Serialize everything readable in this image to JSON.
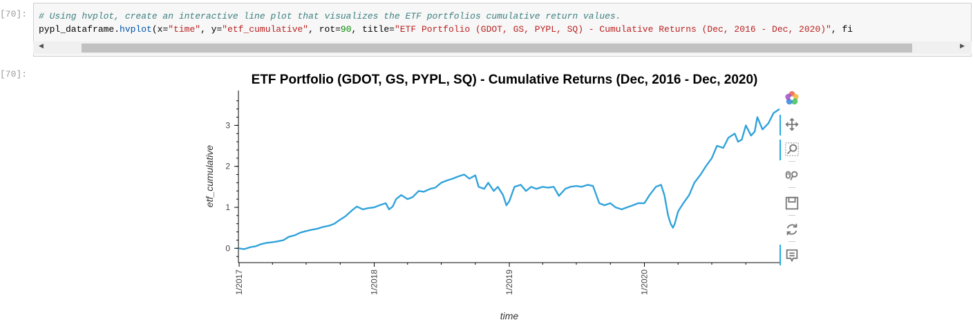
{
  "notebook": {
    "input_prompt": "[70]:",
    "output_prompt": "[70]:",
    "code_comment": "# Using hvplot, create an interactive line plot that visualizes the ETF portfolios cumulative return values.",
    "code_line": {
      "obj": "pypl_dataframe.",
      "method": "hvplot",
      "p1": "(x=",
      "x": "\"time\"",
      "p2": ", y=",
      "y": "\"etf_cumulative\"",
      "p3": ", rot=",
      "rot": "90",
      "p4": ", title=",
      "title": "\"ETF Portfolio (GDOT, GS, PYPL, SQ) - Cumulative Returns (Dec, 2016 - Dec, 2020)\"",
      "p5": ", fi"
    },
    "scroll_left": "◀",
    "scroll_right": "▶"
  },
  "toolbar": {
    "icons": [
      "bokeh-logo-icon",
      "pan-icon",
      "box-zoom-icon",
      "wheel-zoom-icon",
      "save-icon",
      "reset-icon",
      "hover-icon"
    ]
  },
  "chart_data": {
    "type": "line",
    "title": "ETF Portfolio (GDOT, GS, PYPL, SQ) - Cumulative Returns (Dec, 2016 - Dec, 2020)",
    "xlabel": "time",
    "ylabel": "etf_cumulative",
    "x_ticks": [
      "1/2017",
      "1/2018",
      "1/2019",
      "1/2020"
    ],
    "y_ticks": [
      0,
      1,
      2,
      3
    ],
    "xlim": [
      "2016-12-30",
      "2020-12-31"
    ],
    "ylim": [
      -0.35,
      3.85
    ],
    "grid": false,
    "color": "#30a2da",
    "series": [
      {
        "x": [
          "2016-12-30",
          "2017-01-15",
          "2017-02-01",
          "2017-02-15",
          "2017-03-01",
          "2017-03-15",
          "2017-04-01",
          "2017-04-15",
          "2017-05-01",
          "2017-05-15",
          "2017-06-01",
          "2017-06-15",
          "2017-07-01",
          "2017-07-15",
          "2017-08-01",
          "2017-08-15",
          "2017-09-01",
          "2017-09-15",
          "2017-10-01",
          "2017-10-15",
          "2017-11-01",
          "2017-11-15",
          "2017-12-01",
          "2017-12-15",
          "2018-01-01",
          "2018-01-15",
          "2018-02-01",
          "2018-02-10",
          "2018-02-20",
          "2018-03-01",
          "2018-03-15",
          "2018-04-01",
          "2018-04-15",
          "2018-05-01",
          "2018-05-15",
          "2018-06-01",
          "2018-06-15",
          "2018-07-01",
          "2018-07-15",
          "2018-08-01",
          "2018-08-15",
          "2018-09-01",
          "2018-09-15",
          "2018-10-01",
          "2018-10-10",
          "2018-10-25",
          "2018-11-05",
          "2018-11-20",
          "2018-12-01",
          "2018-12-15",
          "2018-12-24",
          "2019-01-01",
          "2019-01-15",
          "2019-02-01",
          "2019-02-15",
          "2019-03-01",
          "2019-03-15",
          "2019-04-01",
          "2019-04-15",
          "2019-05-01",
          "2019-05-15",
          "2019-06-01",
          "2019-06-15",
          "2019-07-01",
          "2019-07-15",
          "2019-08-01",
          "2019-08-15",
          "2019-09-01",
          "2019-09-15",
          "2019-10-01",
          "2019-10-15",
          "2019-11-01",
          "2019-11-15",
          "2019-12-01",
          "2019-12-15",
          "2020-01-01",
          "2020-01-15",
          "2020-02-01",
          "2020-02-15",
          "2020-02-24",
          "2020-03-05",
          "2020-03-12",
          "2020-03-18",
          "2020-03-23",
          "2020-04-01",
          "2020-04-15",
          "2020-05-01",
          "2020-05-15",
          "2020-06-01",
          "2020-06-15",
          "2020-07-01",
          "2020-07-15",
          "2020-08-01",
          "2020-08-15",
          "2020-09-01",
          "2020-09-10",
          "2020-09-20",
          "2020-10-01",
          "2020-10-15",
          "2020-10-25",
          "2020-11-01",
          "2020-11-15",
          "2020-12-01",
          "2020-12-15",
          "2020-12-31"
        ],
        "y": [
          0.0,
          -0.02,
          0.03,
          0.05,
          0.1,
          0.13,
          0.15,
          0.17,
          0.2,
          0.28,
          0.32,
          0.38,
          0.42,
          0.45,
          0.48,
          0.52,
          0.55,
          0.6,
          0.7,
          0.78,
          0.92,
          1.02,
          0.95,
          0.98,
          1.0,
          1.05,
          1.1,
          0.95,
          1.02,
          1.2,
          1.3,
          1.2,
          1.25,
          1.4,
          1.38,
          1.45,
          1.48,
          1.6,
          1.65,
          1.7,
          1.75,
          1.8,
          1.7,
          1.78,
          1.5,
          1.45,
          1.6,
          1.4,
          1.5,
          1.3,
          1.05,
          1.15,
          1.5,
          1.55,
          1.4,
          1.5,
          1.45,
          1.5,
          1.48,
          1.5,
          1.28,
          1.45,
          1.5,
          1.52,
          1.5,
          1.55,
          1.52,
          1.1,
          1.05,
          1.1,
          1.0,
          0.95,
          1.0,
          1.05,
          1.1,
          1.1,
          1.3,
          1.5,
          1.55,
          1.3,
          0.8,
          0.6,
          0.5,
          0.6,
          0.9,
          1.1,
          1.3,
          1.6,
          1.8,
          2.0,
          2.2,
          2.5,
          2.45,
          2.7,
          2.8,
          2.6,
          2.65,
          3.0,
          2.75,
          2.85,
          3.2,
          2.9,
          3.05,
          3.3,
          3.4
        ]
      }
    ]
  }
}
